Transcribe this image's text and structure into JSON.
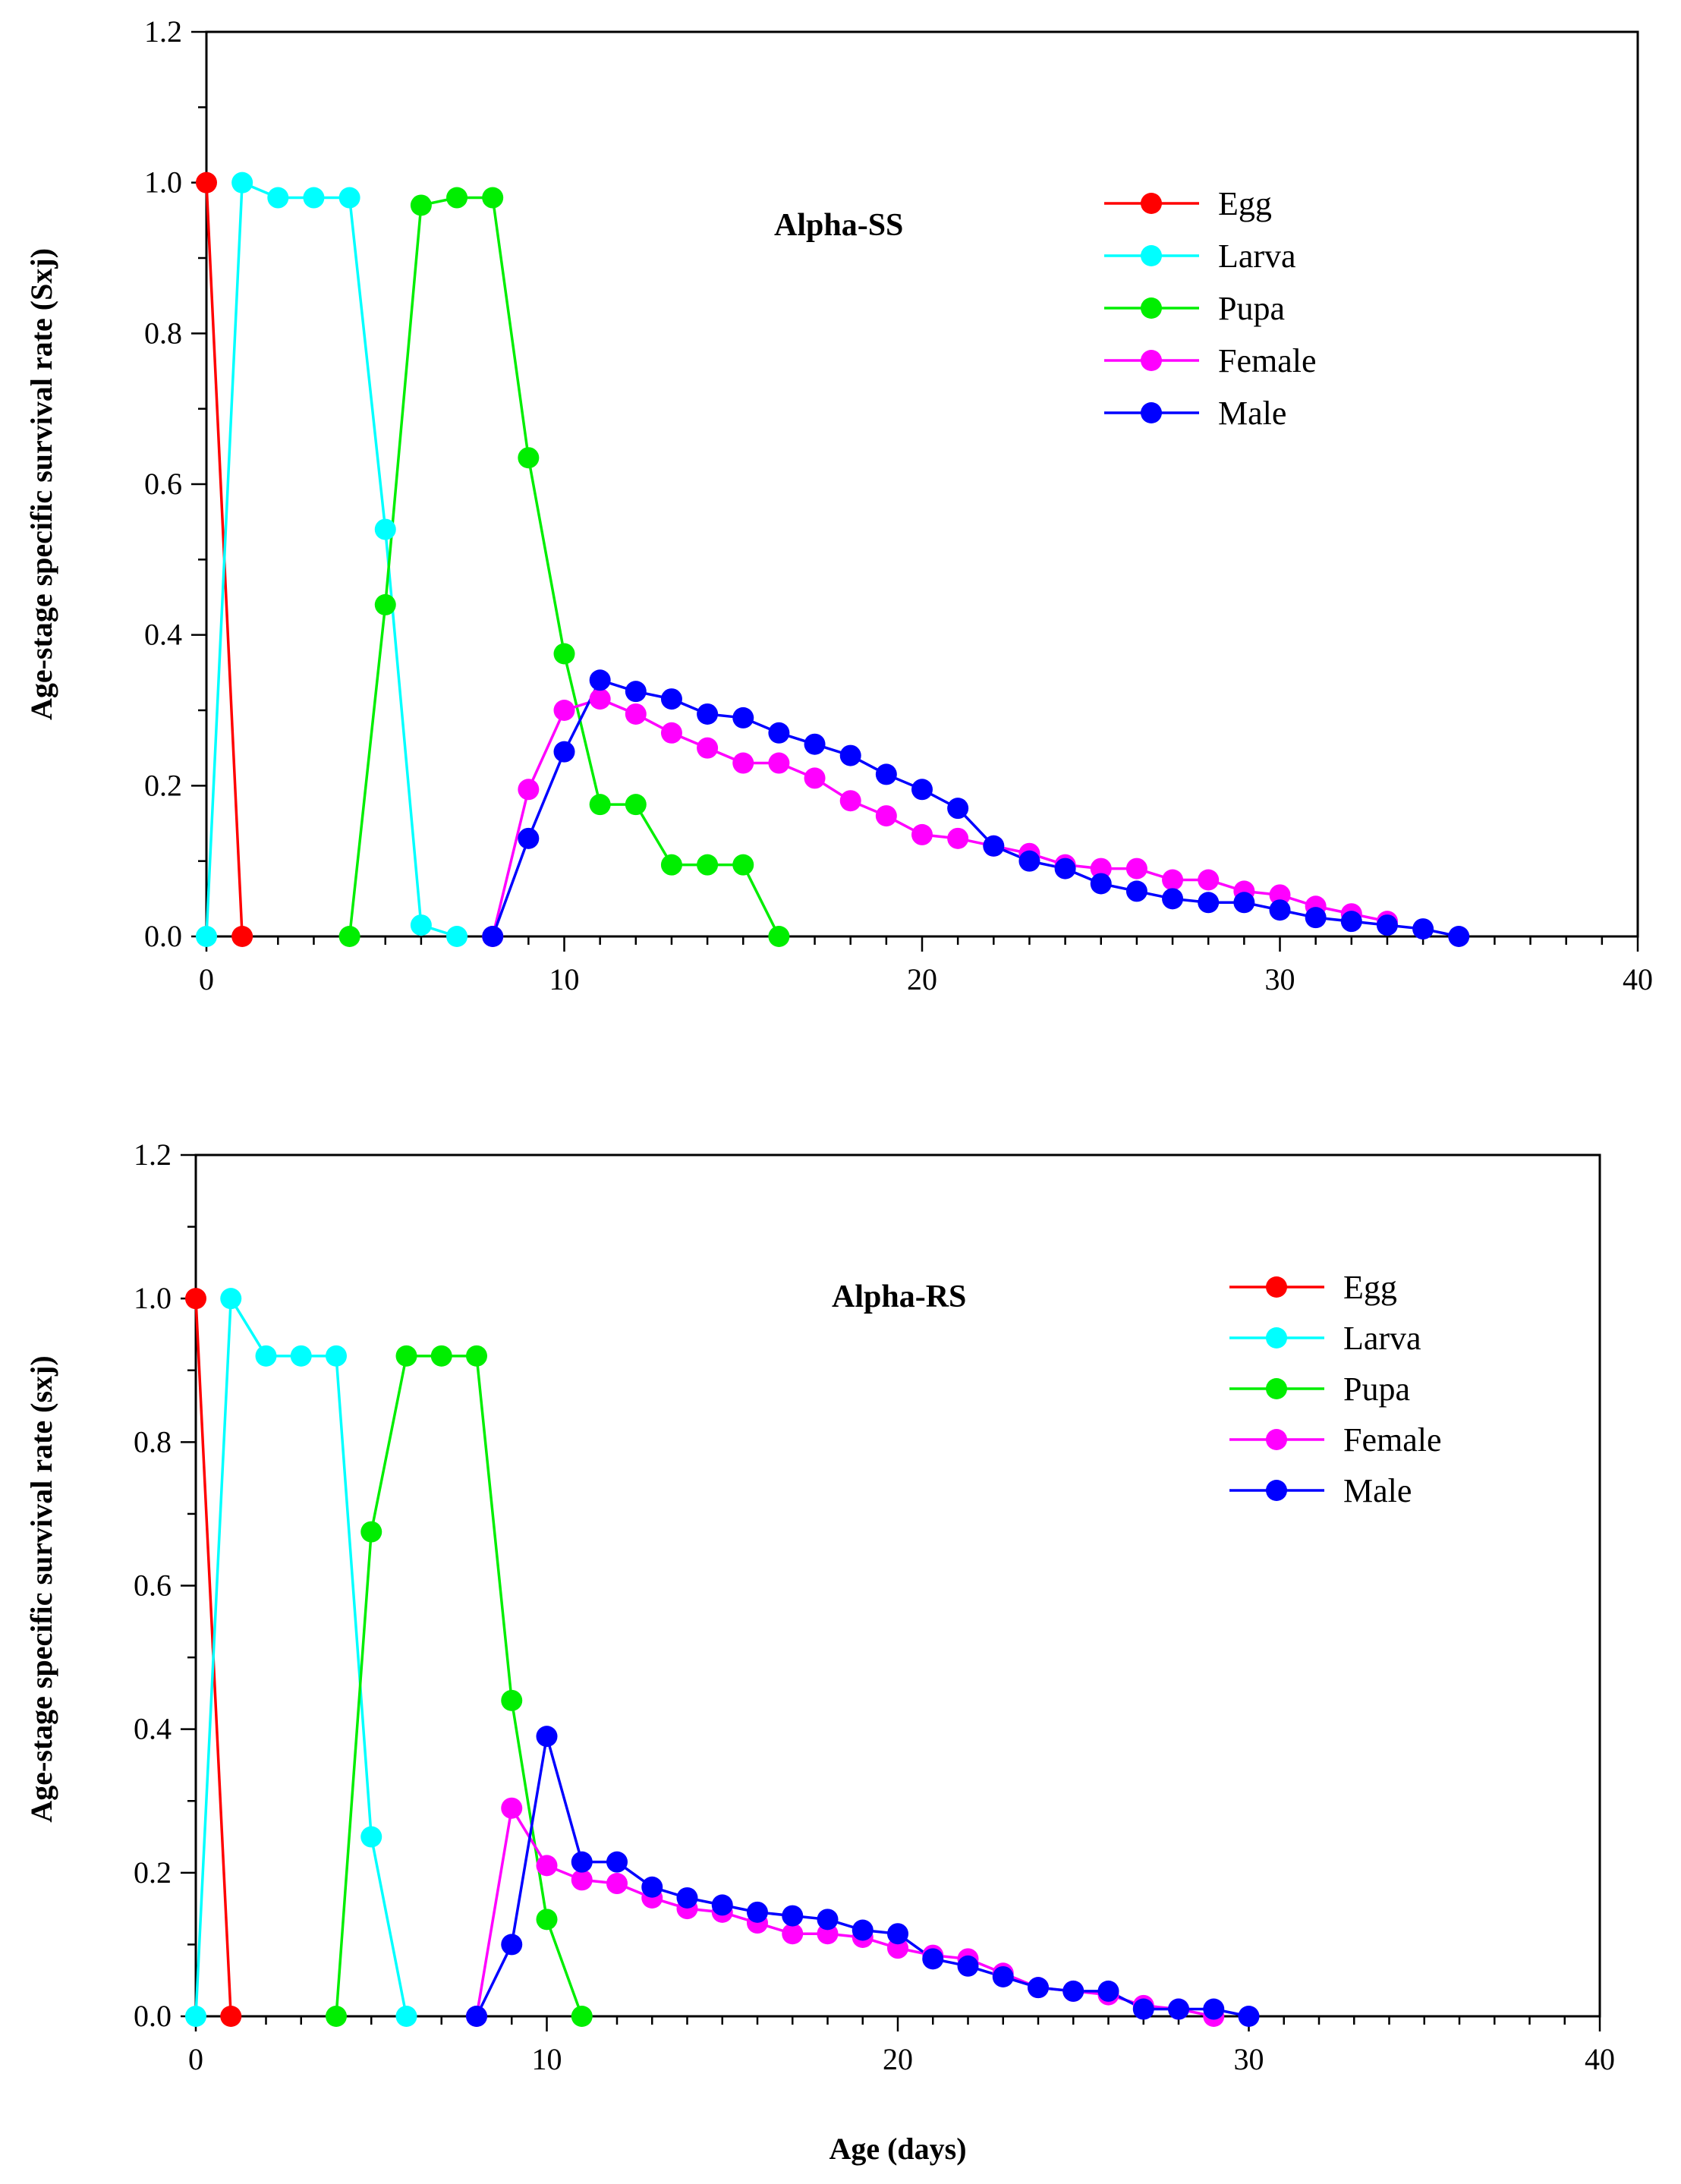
{
  "x_axis_title": "Age (days)",
  "colors": {
    "Egg": "#ff0000",
    "Larva": "#00ffff",
    "Pupa": "#00ee00",
    "Female": "#ff00ff",
    "Male": "#0000ff"
  },
  "chart_data": [
    {
      "type": "line",
      "panel_label": "Alpha-SS",
      "ylabel": "Age-stage specific survival rate (Sxj)",
      "xlabel": "",
      "xlim": [
        0,
        40
      ],
      "ylim": [
        0,
        1.2
      ],
      "x_ticks": [
        "0",
        "10",
        "20",
        "30",
        "40"
      ],
      "y_ticks": [
        "0.0",
        "0.2",
        "0.4",
        "0.6",
        "0.8",
        "1.0",
        "1.2"
      ],
      "legend_position": "top-right",
      "series": [
        {
          "name": "Egg",
          "x": [
            0,
            1
          ],
          "y": [
            1.0,
            0.0
          ]
        },
        {
          "name": "Larva",
          "x": [
            0,
            1,
            2,
            3,
            4,
            5,
            6,
            7
          ],
          "y": [
            0.0,
            1.0,
            0.98,
            0.98,
            0.98,
            0.54,
            0.015,
            0.0
          ]
        },
        {
          "name": "Pupa",
          "x": [
            4,
            5,
            6,
            7,
            8,
            9,
            10,
            11,
            12,
            13,
            14,
            15,
            16
          ],
          "y": [
            0.0,
            0.44,
            0.97,
            0.98,
            0.98,
            0.635,
            0.375,
            0.175,
            0.175,
            0.095,
            0.095,
            0.095,
            0.0
          ]
        },
        {
          "name": "Female",
          "x": [
            8,
            9,
            10,
            11,
            12,
            13,
            14,
            15,
            16,
            17,
            18,
            19,
            20,
            21,
            22,
            23,
            24,
            25,
            26,
            27,
            28,
            29,
            30,
            31,
            32,
            33
          ],
          "y": [
            0.0,
            0.195,
            0.3,
            0.315,
            0.295,
            0.27,
            0.25,
            0.23,
            0.23,
            0.21,
            0.18,
            0.16,
            0.135,
            0.13,
            0.12,
            0.11,
            0.095,
            0.09,
            0.09,
            0.075,
            0.075,
            0.06,
            0.055,
            0.04,
            0.03,
            0.02
          ]
        },
        {
          "name": "Male",
          "x": [
            8,
            9,
            10,
            11,
            12,
            13,
            14,
            15,
            16,
            17,
            18,
            19,
            20,
            21,
            22,
            23,
            24,
            25,
            26,
            27,
            28,
            29,
            30,
            31,
            32,
            33,
            34,
            35
          ],
          "y": [
            0.0,
            0.13,
            0.245,
            0.34,
            0.325,
            0.315,
            0.295,
            0.29,
            0.27,
            0.255,
            0.24,
            0.215,
            0.195,
            0.17,
            0.12,
            0.1,
            0.09,
            0.07,
            0.06,
            0.05,
            0.045,
            0.045,
            0.035,
            0.025,
            0.02,
            0.015,
            0.01,
            0.0
          ]
        }
      ]
    },
    {
      "type": "line",
      "panel_label": "Alpha-RS",
      "ylabel": "Age-stage specific survival rate (sxj)",
      "xlabel": "Age (days)",
      "xlim": [
        0,
        40
      ],
      "ylim": [
        0,
        1.2
      ],
      "x_ticks": [
        "0",
        "10",
        "20",
        "30",
        "40"
      ],
      "y_ticks": [
        "0.0",
        "0.2",
        "0.4",
        "0.6",
        "0.8",
        "1.0",
        "1.2"
      ],
      "legend_position": "top-right",
      "series": [
        {
          "name": "Egg",
          "x": [
            0,
            1
          ],
          "y": [
            1.0,
            0.0
          ]
        },
        {
          "name": "Larva",
          "x": [
            0,
            1,
            2,
            3,
            4,
            5,
            6
          ],
          "y": [
            0.0,
            1.0,
            0.92,
            0.92,
            0.92,
            0.25,
            0.0
          ]
        },
        {
          "name": "Pupa",
          "x": [
            4,
            5,
            6,
            7,
            8,
            9,
            10,
            11
          ],
          "y": [
            0.0,
            0.675,
            0.92,
            0.92,
            0.92,
            0.44,
            0.135,
            0.0
          ]
        },
        {
          "name": "Female",
          "x": [
            8,
            9,
            10,
            11,
            12,
            13,
            14,
            15,
            16,
            17,
            18,
            19,
            20,
            21,
            22,
            23,
            24,
            25,
            26,
            27,
            28,
            29
          ],
          "y": [
            0.0,
            0.29,
            0.21,
            0.19,
            0.185,
            0.165,
            0.15,
            0.145,
            0.13,
            0.115,
            0.115,
            0.11,
            0.095,
            0.085,
            0.08,
            0.06,
            0.04,
            0.035,
            0.03,
            0.015,
            0.01,
            0.0
          ]
        },
        {
          "name": "Male",
          "x": [
            8,
            9,
            10,
            11,
            12,
            13,
            14,
            15,
            16,
            17,
            18,
            19,
            20,
            21,
            22,
            23,
            24,
            25,
            26,
            27,
            28,
            29,
            30
          ],
          "y": [
            0.0,
            0.1,
            0.39,
            0.215,
            0.215,
            0.18,
            0.165,
            0.155,
            0.145,
            0.14,
            0.135,
            0.12,
            0.115,
            0.08,
            0.07,
            0.055,
            0.04,
            0.035,
            0.035,
            0.01,
            0.01,
            0.01,
            0.0
          ]
        }
      ]
    }
  ]
}
